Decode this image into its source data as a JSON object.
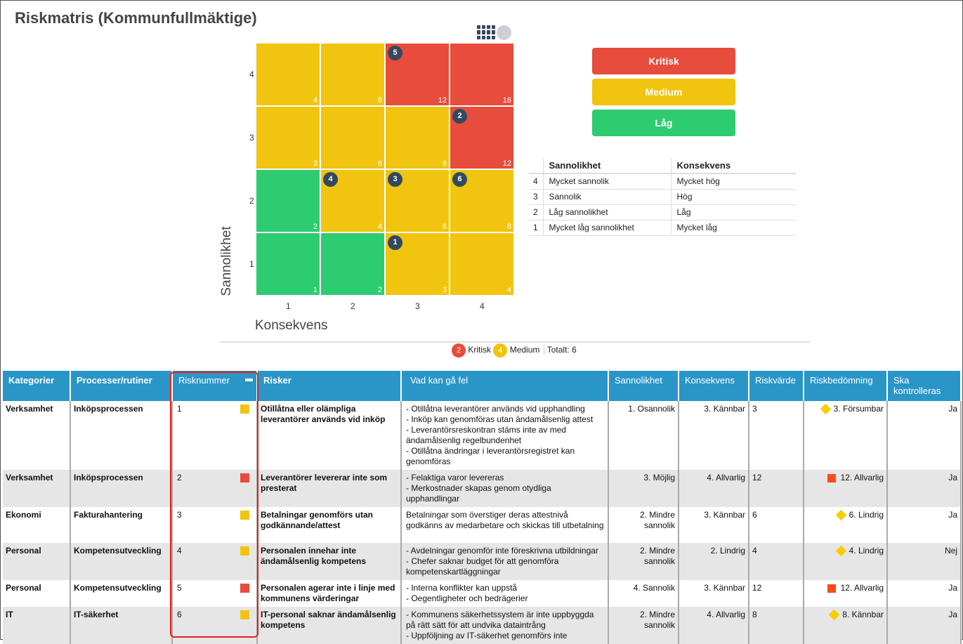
{
  "title": "Riskmatris (Kommunfullmäktige)",
  "colors": {
    "critical": "#e74c3c",
    "medium": "#f1c40f",
    "low": "#2ecc71",
    "marker": "#34495e",
    "header": "#2a96c8"
  },
  "chart_data": {
    "type": "heatmap",
    "xlabel": "Konsekvens",
    "ylabel": "Sannolikhet",
    "x_ticks": [
      "1",
      "2",
      "3",
      "4"
    ],
    "y_ticks": [
      "1",
      "2",
      "3",
      "4"
    ],
    "cells": [
      {
        "l": 4,
        "c": 1,
        "value": "4",
        "level": "medium"
      },
      {
        "l": 4,
        "c": 2,
        "value": "8",
        "level": "medium"
      },
      {
        "l": 4,
        "c": 3,
        "value": "12",
        "level": "critical"
      },
      {
        "l": 4,
        "c": 4,
        "value": "16",
        "level": "critical"
      },
      {
        "l": 3,
        "c": 1,
        "value": "3",
        "level": "medium"
      },
      {
        "l": 3,
        "c": 2,
        "value": "6",
        "level": "medium"
      },
      {
        "l": 3,
        "c": 3,
        "value": "9",
        "level": "medium"
      },
      {
        "l": 3,
        "c": 4,
        "value": "12",
        "level": "critical"
      },
      {
        "l": 2,
        "c": 1,
        "value": "2",
        "level": "low"
      },
      {
        "l": 2,
        "c": 2,
        "value": "4",
        "level": "medium"
      },
      {
        "l": 2,
        "c": 3,
        "value": "6",
        "level": "medium"
      },
      {
        "l": 2,
        "c": 4,
        "value": "8",
        "level": "medium"
      },
      {
        "l": 1,
        "c": 1,
        "value": "1",
        "level": "low"
      },
      {
        "l": 1,
        "c": 2,
        "value": "2",
        "level": "low"
      },
      {
        "l": 1,
        "c": 3,
        "value": "3",
        "level": "medium"
      },
      {
        "l": 1,
        "c": 4,
        "value": "4",
        "level": "medium"
      }
    ],
    "markers": [
      {
        "id": "5",
        "l": 4,
        "c": 3
      },
      {
        "id": "2",
        "l": 3,
        "c": 4
      },
      {
        "id": "4",
        "l": 2,
        "c": 2
      },
      {
        "id": "3",
        "l": 2,
        "c": 3
      },
      {
        "id": "6",
        "l": 2,
        "c": 4
      },
      {
        "id": "1",
        "l": 1,
        "c": 3
      }
    ]
  },
  "legend_buttons": [
    "Kritisk",
    "Medium",
    "Låg"
  ],
  "definitions": {
    "headers": [
      "",
      "Sannolikhet",
      "Konsekvens"
    ],
    "rows": [
      [
        "4",
        "Mycket sannolik",
        "Mycket hög"
      ],
      [
        "3",
        "Sannolik",
        "Hög"
      ],
      [
        "2",
        "Låg sannolikhet",
        "Låg"
      ],
      [
        "1",
        "Mycket låg sannolikhet",
        "Mycket låg"
      ]
    ]
  },
  "summary": {
    "critical_count": "2",
    "critical_label": "Kritisk",
    "medium_count": "4",
    "medium_label": "Medium",
    "total": "Totalt: 6"
  },
  "table": {
    "headers": [
      "Kategorier",
      "Processer/rutiner",
      "Risknummer",
      "Risker",
      "Vad kan gå fel",
      "Sannolikhet",
      "Konsekvens",
      "Riskvärde",
      "Riskbedömning",
      "Ska kontrolleras"
    ],
    "rows": [
      {
        "kategori": "Verksamhet",
        "process": "Inköpsprocessen",
        "nr": "1",
        "level": "medium",
        "risk": "Otillåtna eller olämpliga leverantörer används vid inköp",
        "fel": "- Otillåtna leverantörer används vid upphandling\n- Inköp kan genomföras utan ändamålsenlig attest\n- Leverantörsreskontran stäms inte av med ändamålsenlig regelbundenhet\n- Otillåtna ändringar i leverantörsregistret kan genomföras",
        "sannolikhet": "1. Osannolik",
        "konsekvens": "3. Kännbar",
        "varde": "3",
        "bedomning": "3. Försumbar",
        "bed_shape": "diamond",
        "ska": "Ja"
      },
      {
        "kategori": "Verksamhet",
        "process": "Inköpsprocessen",
        "nr": "2",
        "level": "critical",
        "risk": "Leverantörer levererar inte som presterat",
        "fel": "- Felaktiga varor levereras\n- Merkostnader skapas genom otydliga upphandlingar",
        "sannolikhet": "3. Möjlig",
        "konsekvens": "4. Allvarlig",
        "varde": "12",
        "bedomning": "12. Allvarlig",
        "bed_shape": "square",
        "ska": "Ja"
      },
      {
        "kategori": "Ekonomi",
        "process": "Fakturahantering",
        "nr": "3",
        "level": "medium",
        "risk": "Betalningar genomförs utan godkännande/attest",
        "fel": "Betalningar som överstiger deras attestnivå godkänns av medarbetare och skickas till utbetalning",
        "sannolikhet": "2. Mindre sannolik",
        "konsekvens": "3. Kännbar",
        "varde": "6",
        "bedomning": "6. Lindrig",
        "bed_shape": "diamond",
        "ska": "Ja"
      },
      {
        "kategori": "Personal",
        "process": "Kompetensutveckling",
        "nr": "4",
        "level": "medium",
        "risk": "Personalen innehar inte ändamålsenlig kompetens",
        "fel": "- Avdelningar genomför inte föreskrivna utbildningar\n- Chefer saknar budget för att genomföra kompetenskartläggningar",
        "sannolikhet": "2. Mindre sannolik",
        "konsekvens": "2. Lindrig",
        "varde": "4",
        "bedomning": "4. Lindrig",
        "bed_shape": "diamond",
        "ska": "Nej"
      },
      {
        "kategori": "Personal",
        "process": "Kompetensutveckling",
        "nr": "5",
        "level": "critical",
        "risk": "Personalen agerar inte i linje med kommunens värderingar",
        "fel": "- Interna konflikter kan uppstå\n- Oegentligheter och bedrägerier",
        "sannolikhet": "4. Sannolik",
        "konsekvens": "3. Kännbar",
        "varde": "12",
        "bedomning": "12. Allvarlig",
        "bed_shape": "square",
        "ska": "Ja"
      },
      {
        "kategori": "IT",
        "process": "IT-säkerhet",
        "nr": "6",
        "level": "medium",
        "risk": "IT-personal saknar ändamålsenlig kompetens",
        "fel": "- Kommunens säkerhetssystem är inte uppbyggda på rätt sätt för att undvika dataintrång\n- Uppföljning av IT-säkerhet genomförs inte",
        "sannolikhet": "2. Mindre sannolik",
        "konsekvens": "4. Allvarlig",
        "varde": "8",
        "bedomning": "8. Kännbar",
        "bed_shape": "diamond",
        "ska": "Ja"
      }
    ]
  }
}
